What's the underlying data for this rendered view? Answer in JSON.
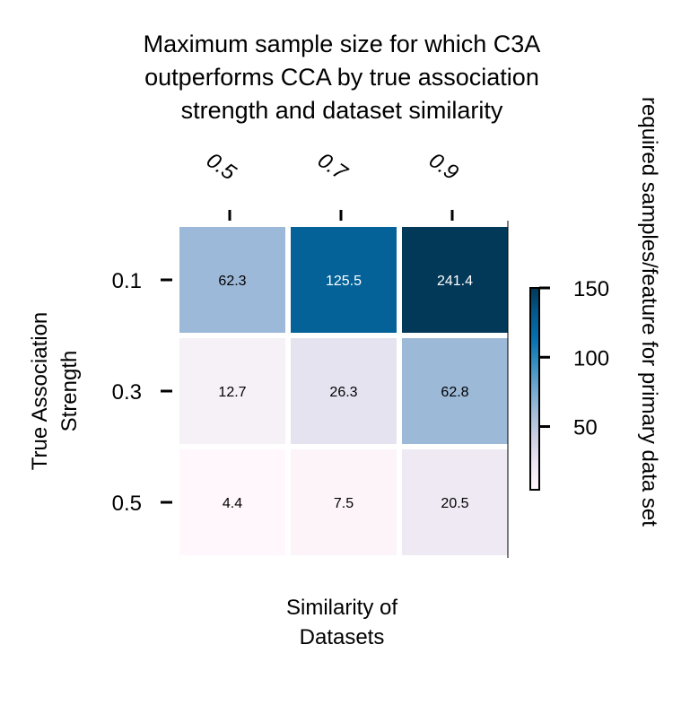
{
  "chart_data": {
    "type": "heatmap",
    "title": [
      "Maximum sample size for which C3A",
      "outperforms CCA by true association",
      "strength and dataset similarity"
    ],
    "xlabel": [
      "Similarity of",
      "Datasets"
    ],
    "ylabel": [
      "True Association",
      "Strength"
    ],
    "x_categories": [
      "0.5",
      "0.7",
      "0.9"
    ],
    "y_categories": [
      "0.1",
      "0.3",
      "0.5"
    ],
    "values": [
      [
        62.3,
        125.5,
        241.4
      ],
      [
        12.7,
        26.3,
        62.8
      ],
      [
        4.4,
        7.5,
        20.5
      ]
    ],
    "value_labels": [
      [
        "62.3",
        "125.5",
        "241.4"
      ],
      [
        "12.7",
        "26.3",
        "62.8"
      ],
      [
        "4.4",
        "7.5",
        "20.5"
      ]
    ],
    "colorbar": {
      "label": "required samples/feature for primary data set",
      "range": [
        4.4,
        150
      ],
      "ticks": [
        50,
        100,
        150
      ],
      "tick_labels": [
        "50",
        "100",
        "150"
      ],
      "colormap": "PuBu",
      "color_stops": [
        "#fff7fb",
        "#ece7f2",
        "#d0d1e6",
        "#a6bddb",
        "#74a9cf",
        "#3690c0",
        "#0570b0",
        "#045a8d",
        "#023858"
      ]
    },
    "x_tick_position": "top",
    "grid": false
  }
}
